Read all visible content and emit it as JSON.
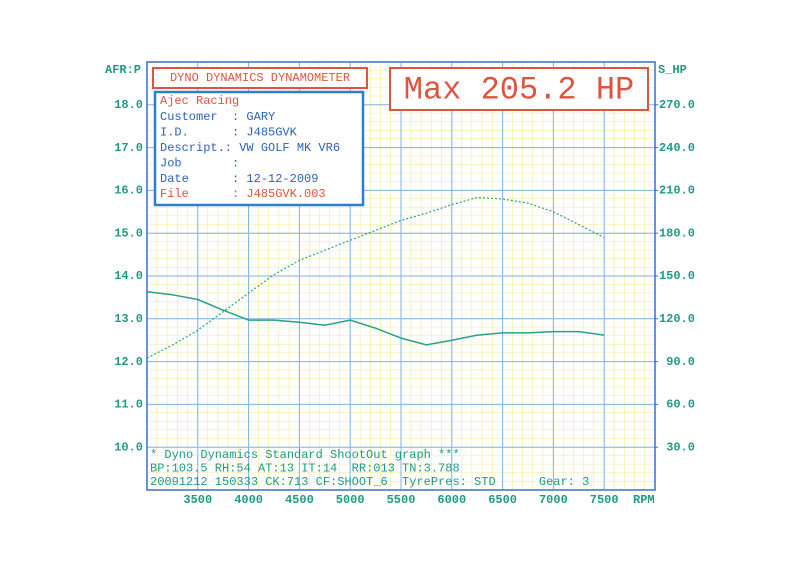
{
  "chart_data": {
    "type": "line",
    "title": "DYNO DYNAMICS DYNAMOMETER",
    "annotation": "Max 205.2 HP",
    "info_box": {
      "title": "Ajec Racing",
      "rows": [
        "Customer  : GARY",
        "I.D.      : J485GVK",
        "Descript.: VW GOLF MK VR6",
        "Job       :",
        "Date      : 12-12-2009"
      ],
      "file_row": "File      : J485GVK.003"
    },
    "footer": [
      "* Dyno Dynamics Standard ShootOut graph ***",
      "BP:103.5 RH:54 AT:13 IT:14  RR:013 TN:3.788",
      "20091212 150333 CK:713 CF:SHOOT_6  TyrePres: STD      Gear: 3"
    ],
    "y_label": "AFR:P",
    "y2_label": "S_HP",
    "x_label": "RPM",
    "x": [
      3000,
      3250,
      3500,
      3750,
      4000,
      4250,
      4500,
      4750,
      5000,
      5250,
      5500,
      5750,
      6000,
      6250,
      6500,
      6750,
      7000,
      7250,
      7500
    ],
    "series": [
      {
        "color": "#2aa08c",
        "dash": "solid",
        "axis": "y",
        "values": [
          13.63,
          13.56,
          13.45,
          13.2,
          12.97,
          12.97,
          12.92,
          12.85,
          12.97,
          12.78,
          12.55,
          12.39,
          12.5,
          12.62,
          12.67,
          12.67,
          12.7,
          12.7,
          12.62
        ]
      },
      {
        "color": "#2aa08c",
        "dash": "dotted",
        "axis": "y2",
        "values": [
          92.5,
          101.6,
          112,
          125,
          138,
          151,
          161,
          168,
          175,
          182,
          189,
          194,
          200,
          205,
          204,
          201,
          195,
          186,
          177
        ]
      }
    ],
    "xlim": [
      3000,
      8000
    ],
    "xticks": [
      3500,
      4000,
      4500,
      5000,
      5500,
      6000,
      6500,
      7000,
      7500
    ],
    "ylim": [
      9,
      19
    ],
    "yticks": [
      {
        "value": 10,
        "label": "10.0"
      },
      {
        "value": 11,
        "label": "11.0"
      },
      {
        "value": 12,
        "label": "12.0"
      },
      {
        "value": 13,
        "label": "13.0"
      },
      {
        "value": 14,
        "label": "14.0"
      },
      {
        "value": 15,
        "label": "15.0"
      },
      {
        "value": 16,
        "label": "16.0"
      },
      {
        "value": 17,
        "label": "17.0"
      },
      {
        "value": 18,
        "label": "18.0"
      }
    ],
    "y2lim": [
      0,
      300
    ],
    "y2ticks": [
      {
        "value": 30,
        "label": "30.0"
      },
      {
        "value": 60,
        "label": "60.0"
      },
      {
        "value": 90,
        "label": "90.0"
      },
      {
        "value": 120,
        "label": "120.0"
      },
      {
        "value": 150,
        "label": "150.0"
      },
      {
        "value": 180,
        "label": "180.0"
      },
      {
        "value": 210,
        "label": "210.0"
      },
      {
        "value": 240,
        "label": "240.0"
      },
      {
        "value": 270,
        "label": "270.0"
      }
    ],
    "grid": true
  }
}
